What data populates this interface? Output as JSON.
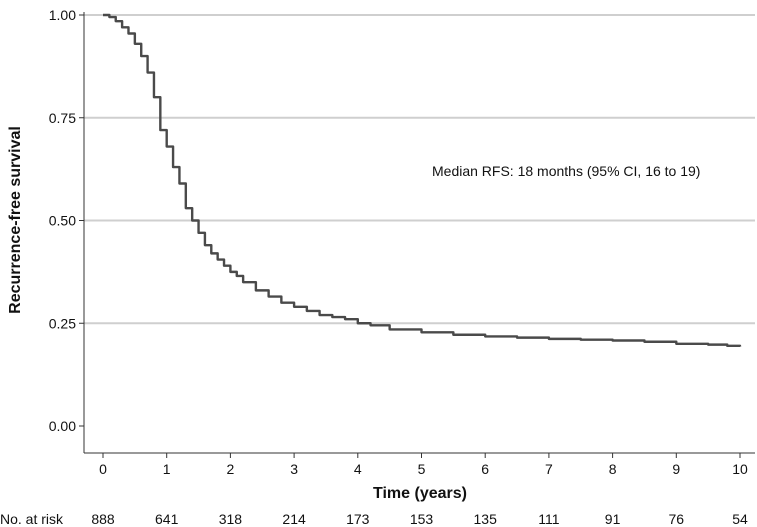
{
  "chart_data": {
    "type": "line",
    "title": "",
    "xlabel": "Time (years)",
    "ylabel": "Recurrence-free survival",
    "xlim": [
      0,
      10
    ],
    "ylim": [
      0,
      1
    ],
    "x_ticks": [
      "0",
      "1",
      "2",
      "3",
      "4",
      "5",
      "6",
      "7",
      "8",
      "9",
      "10"
    ],
    "y_ticks": [
      "0.00",
      "0.25",
      "0.50",
      "0.75",
      "1.00"
    ],
    "grid": "horizontal",
    "colors": {
      "line": "#4a4a4a",
      "grid": "#cfcfcf",
      "axis": "#333333"
    },
    "series": [
      {
        "x": [
          0,
          0.1,
          0.2,
          0.3,
          0.4,
          0.5,
          0.6,
          0.7,
          0.8,
          0.9,
          1.0,
          1.1,
          1.2,
          1.3,
          1.4,
          1.5,
          1.6,
          1.7,
          1.8,
          1.9,
          2.0,
          2.1,
          2.2,
          2.4,
          2.6,
          2.8,
          3.0,
          3.2,
          3.4,
          3.6,
          3.8,
          4.0,
          4.2,
          4.5,
          5.0,
          5.5,
          6.0,
          6.5,
          7.0,
          7.5,
          8.0,
          8.5,
          9.0,
          9.5,
          9.8,
          10.0
        ],
        "y": [
          1.0,
          0.995,
          0.985,
          0.97,
          0.955,
          0.93,
          0.9,
          0.86,
          0.8,
          0.72,
          0.68,
          0.63,
          0.59,
          0.53,
          0.5,
          0.47,
          0.44,
          0.42,
          0.405,
          0.39,
          0.375,
          0.365,
          0.35,
          0.33,
          0.315,
          0.3,
          0.29,
          0.28,
          0.27,
          0.265,
          0.26,
          0.25,
          0.245,
          0.235,
          0.228,
          0.222,
          0.218,
          0.215,
          0.212,
          0.21,
          0.208,
          0.205,
          0.2,
          0.198,
          0.195,
          0.193
        ]
      }
    ],
    "annotation": "Median RFS: 18 months (95% CI, 16 to 19)",
    "risk_table": {
      "label": "No. at risk",
      "values": [
        "888",
        "641",
        "318",
        "214",
        "173",
        "153",
        "135",
        "111",
        "91",
        "76",
        "54"
      ]
    }
  }
}
